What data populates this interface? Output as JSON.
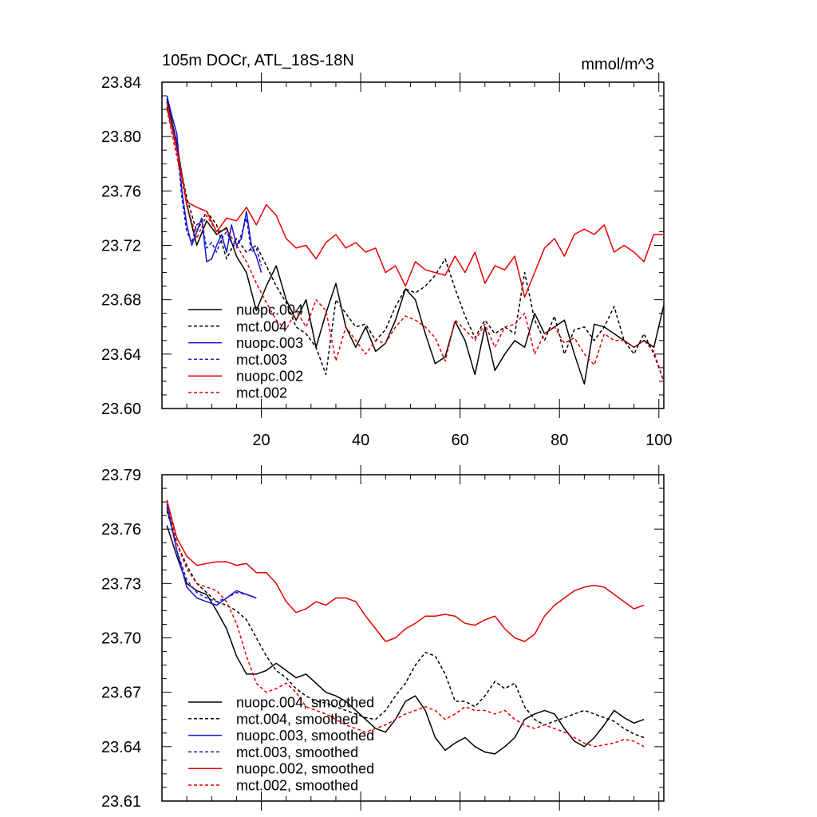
{
  "figure": {
    "title_left": "105m DOCr, ATL_18S-18N",
    "title_right": "mmol/m^3"
  },
  "colors": {
    "black": "#000000",
    "blue": "#1414d2",
    "red": "#e60000"
  },
  "chart_data": [
    {
      "type": "line",
      "title": "105m DOCr, ATL_18S-18N",
      "units": "mmol/m^3",
      "xlim": [
        0,
        101
      ],
      "ylim": [
        23.6,
        23.84
      ],
      "xticks": [
        20,
        40,
        60,
        80,
        100
      ],
      "xtick_labels": [
        "20",
        "40",
        "60",
        "80",
        "100"
      ],
      "yticks": [
        23.6,
        23.64,
        23.68,
        23.72,
        23.76,
        23.8,
        23.84
      ],
      "ytick_labels": [
        "23.60",
        "23.64",
        "23.68",
        "23.72",
        "23.76",
        "23.80",
        "23.84"
      ],
      "legend_position": "lower-left",
      "series": [
        {
          "name": "nuopc.004",
          "color": "black",
          "dash": false,
          "x": [
            1,
            3,
            5,
            7,
            9,
            11,
            13,
            15,
            17,
            19,
            21,
            23,
            25,
            27,
            29,
            31,
            33,
            35,
            37,
            39,
            41,
            43,
            45,
            47,
            49,
            51,
            53,
            55,
            57,
            59,
            61,
            63,
            65,
            67,
            69,
            71,
            73,
            75,
            77,
            79,
            81,
            83,
            85,
            87,
            89,
            91,
            93,
            95,
            97,
            99,
            101
          ],
          "values": [
            23.828,
            23.795,
            23.75,
            23.72,
            23.738,
            23.728,
            23.733,
            23.712,
            23.7,
            23.672,
            23.69,
            23.705,
            23.68,
            23.665,
            23.68,
            23.645,
            23.67,
            23.692,
            23.66,
            23.645,
            23.66,
            23.642,
            23.648,
            23.665,
            23.688,
            23.68,
            23.655,
            23.633,
            23.638,
            23.664,
            23.65,
            23.625,
            23.66,
            23.628,
            23.64,
            23.65,
            23.645,
            23.67,
            23.655,
            23.66,
            23.665,
            23.64,
            23.618,
            23.662,
            23.66,
            23.655,
            23.65,
            23.645,
            23.65,
            23.645,
            23.676
          ]
        },
        {
          "name": "mct.004",
          "color": "black",
          "dash": true,
          "x": [
            1,
            3,
            5,
            7,
            9,
            11,
            13,
            15,
            17,
            19,
            21,
            23,
            25,
            27,
            29,
            31,
            33,
            35,
            37,
            39,
            41,
            43,
            45,
            47,
            49,
            51,
            53,
            55,
            57,
            59,
            61,
            63,
            65,
            67,
            69,
            71,
            73,
            75,
            77,
            79,
            81,
            83,
            85,
            87,
            89,
            91,
            93,
            95,
            97,
            99,
            101
          ],
          "values": [
            23.822,
            23.79,
            23.755,
            23.73,
            23.745,
            23.735,
            23.71,
            23.725,
            23.715,
            23.72,
            23.705,
            23.69,
            23.678,
            23.66,
            23.655,
            23.645,
            23.625,
            23.68,
            23.67,
            23.66,
            23.662,
            23.65,
            23.658,
            23.675,
            23.688,
            23.685,
            23.69,
            23.698,
            23.71,
            23.688,
            23.668,
            23.652,
            23.665,
            23.655,
            23.66,
            23.655,
            23.7,
            23.665,
            23.65,
            23.668,
            23.64,
            23.658,
            23.66,
            23.65,
            23.66,
            23.675,
            23.65,
            23.64,
            23.655,
            23.64,
            23.62
          ]
        },
        {
          "name": "nuopc.003",
          "color": "blue",
          "dash": false,
          "x": [
            1,
            2,
            3,
            4,
            5,
            6,
            7,
            8,
            9,
            10,
            11,
            12,
            13,
            14,
            15,
            16,
            17,
            18,
            19,
            20
          ],
          "values": [
            23.83,
            23.815,
            23.802,
            23.76,
            23.735,
            23.72,
            23.73,
            23.74,
            23.708,
            23.71,
            23.72,
            23.728,
            23.715,
            23.735,
            23.72,
            23.725,
            23.745,
            23.72,
            23.712,
            23.7
          ]
        },
        {
          "name": "mct.003",
          "color": "blue",
          "dash": true,
          "x": [
            1,
            2,
            3,
            4,
            5,
            6,
            7,
            8,
            9,
            10,
            11,
            12,
            13,
            14,
            15,
            16,
            17,
            18,
            19,
            20
          ],
          "values": [
            23.826,
            23.81,
            23.795,
            23.755,
            23.73,
            23.722,
            23.735,
            23.738,
            23.718,
            23.722,
            23.715,
            23.725,
            23.73,
            23.722,
            23.718,
            23.728,
            23.74,
            23.715,
            23.718,
            23.705
          ]
        },
        {
          "name": "nuopc.002",
          "color": "red",
          "dash": false,
          "x": [
            1,
            3,
            5,
            7,
            9,
            11,
            13,
            15,
            17,
            19,
            21,
            23,
            25,
            27,
            29,
            31,
            33,
            35,
            37,
            39,
            41,
            43,
            45,
            47,
            49,
            51,
            53,
            55,
            57,
            59,
            61,
            63,
            65,
            67,
            69,
            71,
            73,
            75,
            77,
            79,
            81,
            83,
            85,
            87,
            89,
            91,
            93,
            95,
            97,
            99,
            101
          ],
          "values": [
            23.825,
            23.79,
            23.752,
            23.748,
            23.745,
            23.73,
            23.74,
            23.738,
            23.748,
            23.735,
            23.75,
            23.742,
            23.725,
            23.718,
            23.72,
            23.71,
            23.722,
            23.728,
            23.718,
            23.722,
            23.715,
            23.718,
            23.7,
            23.705,
            23.69,
            23.708,
            23.702,
            23.7,
            23.698,
            23.712,
            23.7,
            23.715,
            23.692,
            23.705,
            23.702,
            23.712,
            23.682,
            23.7,
            23.718,
            23.725,
            23.712,
            23.728,
            23.732,
            23.728,
            23.735,
            23.715,
            23.72,
            23.715,
            23.708,
            23.728,
            23.728
          ]
        },
        {
          "name": "mct.002",
          "color": "red",
          "dash": true,
          "x": [
            1,
            3,
            5,
            7,
            9,
            11,
            13,
            15,
            17,
            19,
            21,
            23,
            25,
            27,
            29,
            31,
            33,
            35,
            37,
            39,
            41,
            43,
            45,
            47,
            49,
            51,
            53,
            55,
            57,
            59,
            61,
            63,
            65,
            67,
            69,
            71,
            73,
            75,
            77,
            79,
            81,
            83,
            85,
            87,
            89,
            91,
            93,
            95,
            97,
            99,
            101
          ],
          "values": [
            23.82,
            23.785,
            23.75,
            23.725,
            23.742,
            23.73,
            23.732,
            23.72,
            23.708,
            23.692,
            23.678,
            23.665,
            23.658,
            23.672,
            23.66,
            23.68,
            23.672,
            23.635,
            23.66,
            23.65,
            23.64,
            23.65,
            23.648,
            23.66,
            23.668,
            23.665,
            23.66,
            23.652,
            23.635,
            23.665,
            23.658,
            23.65,
            23.662,
            23.645,
            23.66,
            23.662,
            23.67,
            23.64,
            23.655,
            23.66,
            23.648,
            23.652,
            23.64,
            23.632,
            23.655,
            23.65,
            23.65,
            23.645,
            23.65,
            23.642,
            23.62
          ]
        }
      ]
    },
    {
      "type": "line",
      "title": "",
      "xlim": [
        0,
        101
      ],
      "ylim": [
        23.61,
        23.79
      ],
      "xticks": [
        20,
        40,
        60,
        80,
        100
      ],
      "xtick_labels": [],
      "yticks": [
        23.61,
        23.64,
        23.67,
        23.7,
        23.73,
        23.76,
        23.79
      ],
      "ytick_labels": [
        "23.61",
        "23.64",
        "23.67",
        "23.70",
        "23.73",
        "23.76",
        "23.79"
      ],
      "legend_position": "lower-left",
      "series": [
        {
          "name": "nuopc.004, smoothed",
          "color": "black",
          "dash": false,
          "x": [
            1,
            3,
            5,
            7,
            9,
            11,
            13,
            15,
            17,
            19,
            21,
            23,
            25,
            27,
            29,
            31,
            33,
            35,
            37,
            39,
            41,
            43,
            45,
            47,
            49,
            51,
            53,
            55,
            57,
            59,
            61,
            63,
            65,
            67,
            69,
            71,
            73,
            75,
            77,
            79,
            81,
            83,
            85,
            87,
            89,
            91,
            93,
            95,
            97
          ],
          "values": [
            23.762,
            23.745,
            23.73,
            23.726,
            23.724,
            23.715,
            23.705,
            23.69,
            23.68,
            23.68,
            23.682,
            23.686,
            23.682,
            23.678,
            23.68,
            23.675,
            23.67,
            23.668,
            23.665,
            23.66,
            23.655,
            23.65,
            23.648,
            23.655,
            23.665,
            23.668,
            23.66,
            23.645,
            23.638,
            23.642,
            23.645,
            23.64,
            23.637,
            23.636,
            23.64,
            23.645,
            23.655,
            23.658,
            23.66,
            23.658,
            23.65,
            23.643,
            23.64,
            23.645,
            23.652,
            23.66,
            23.656,
            23.653,
            23.655
          ]
        },
        {
          "name": "mct.004, smoothed",
          "color": "black",
          "dash": true,
          "x": [
            1,
            3,
            5,
            7,
            9,
            11,
            13,
            15,
            17,
            19,
            21,
            23,
            25,
            27,
            29,
            31,
            33,
            35,
            37,
            39,
            41,
            43,
            45,
            47,
            49,
            51,
            53,
            55,
            57,
            59,
            61,
            63,
            65,
            67,
            69,
            71,
            73,
            75,
            77,
            79,
            81,
            83,
            85,
            87,
            89,
            91,
            93,
            95,
            97
          ],
          "values": [
            23.77,
            23.752,
            23.74,
            23.73,
            23.725,
            23.72,
            23.718,
            23.715,
            23.71,
            23.7,
            23.69,
            23.682,
            23.678,
            23.672,
            23.668,
            23.665,
            23.664,
            23.662,
            23.66,
            23.658,
            23.656,
            23.655,
            23.66,
            23.668,
            23.675,
            23.685,
            23.692,
            23.69,
            23.68,
            23.665,
            23.665,
            23.662,
            23.668,
            23.676,
            23.672,
            23.675,
            23.662,
            23.655,
            23.652,
            23.654,
            23.656,
            23.658,
            23.66,
            23.658,
            23.656,
            23.654,
            23.65,
            23.647,
            23.645
          ]
        },
        {
          "name": "mct.003, smoothed",
          "color": "blue",
          "dash": true,
          "x": [
            1,
            3,
            5,
            7,
            9,
            11,
            13,
            15,
            17,
            19
          ],
          "values": [
            23.772,
            23.748,
            23.732,
            23.725,
            23.722,
            23.72,
            23.722,
            23.725,
            23.724,
            23.722
          ]
        },
        {
          "name": "nuopc.003, smoothed",
          "color": "blue",
          "dash": false,
          "x": [
            1,
            3,
            5,
            7,
            9,
            11,
            13,
            15,
            17,
            19
          ],
          "values": [
            23.774,
            23.748,
            23.728,
            23.722,
            23.72,
            23.718,
            23.722,
            23.726,
            23.724,
            23.722
          ]
        },
        {
          "name": "nuopc.002, smoothed",
          "color": "red",
          "dash": false,
          "x": [
            1,
            3,
            5,
            7,
            9,
            11,
            13,
            15,
            17,
            19,
            21,
            23,
            25,
            27,
            29,
            31,
            33,
            35,
            37,
            39,
            41,
            43,
            45,
            47,
            49,
            51,
            53,
            55,
            57,
            59,
            61,
            63,
            65,
            67,
            69,
            71,
            73,
            75,
            77,
            79,
            81,
            83,
            85,
            87,
            89,
            91,
            93,
            95,
            97
          ],
          "values": [
            23.776,
            23.755,
            23.745,
            23.74,
            23.741,
            23.742,
            23.742,
            23.74,
            23.741,
            23.736,
            23.736,
            23.73,
            23.72,
            23.714,
            23.716,
            23.72,
            23.718,
            23.722,
            23.722,
            23.72,
            23.712,
            23.705,
            23.698,
            23.7,
            23.705,
            23.708,
            23.712,
            23.712,
            23.713,
            23.712,
            23.708,
            23.707,
            23.71,
            23.712,
            23.705,
            23.7,
            23.698,
            23.702,
            23.712,
            23.718,
            23.722,
            23.726,
            23.728,
            23.729,
            23.728,
            23.724,
            23.72,
            23.716,
            23.718
          ]
        },
        {
          "name": "mct.002, smoothed",
          "color": "red",
          "dash": true,
          "x": [
            1,
            3,
            5,
            7,
            9,
            11,
            13,
            15,
            17,
            19,
            21,
            23,
            25,
            27,
            29,
            31,
            33,
            35,
            37,
            39,
            41,
            43,
            45,
            47,
            49,
            51,
            53,
            55,
            57,
            59,
            61,
            63,
            65,
            67,
            69,
            71,
            73,
            75,
            77,
            79,
            81,
            83,
            85,
            87,
            89,
            91,
            93,
            95,
            97
          ],
          "values": [
            23.776,
            23.752,
            23.738,
            23.73,
            23.728,
            23.726,
            23.72,
            23.708,
            23.69,
            23.675,
            23.67,
            23.672,
            23.675,
            23.67,
            23.662,
            23.66,
            23.658,
            23.655,
            23.652,
            23.65,
            23.648,
            23.65,
            23.652,
            23.655,
            23.658,
            23.66,
            23.662,
            23.66,
            23.655,
            23.658,
            23.662,
            23.66,
            23.66,
            23.658,
            23.66,
            23.655,
            23.652,
            23.65,
            23.652,
            23.65,
            23.648,
            23.645,
            23.642,
            23.64,
            23.641,
            23.642,
            23.644,
            23.643,
            23.64
          ]
        }
      ]
    }
  ]
}
